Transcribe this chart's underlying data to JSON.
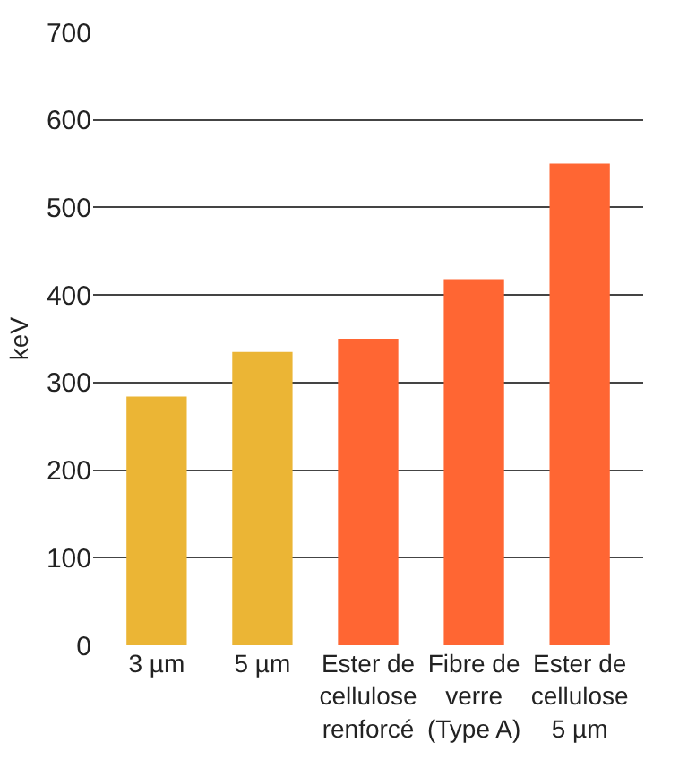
{
  "chart_data": {
    "type": "bar",
    "ylabel": "keV",
    "categories": [
      "3 µm",
      "5 µm",
      "Ester de\ncellulose\nrenforcé",
      "Fibre de\nverre\n(Type A)",
      "Ester de\ncellulose\n5 µm"
    ],
    "values": [
      284,
      335,
      350,
      418,
      550
    ],
    "colors": [
      "#ebb535",
      "#ebb535",
      "#ff6633",
      "#ff6633",
      "#ff6633"
    ],
    "ylim": [
      0,
      700
    ],
    "yticks": [
      0,
      100,
      200,
      300,
      400,
      500,
      600,
      700
    ],
    "grid": "y"
  }
}
